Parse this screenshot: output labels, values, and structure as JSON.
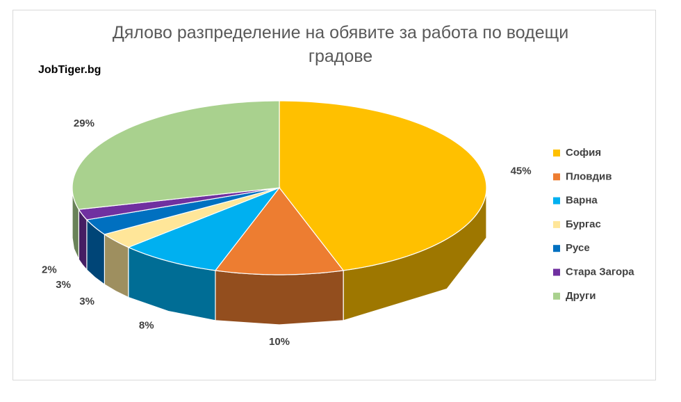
{
  "chart_data": {
    "type": "pie",
    "title": "Дялово разпределение на обявите за работа по водещи градове",
    "annotation": "JobTiger.bg",
    "categories": [
      "София",
      "Пловдив",
      "Варна",
      "Бургас",
      "Русе",
      "Стара Загора",
      "Други"
    ],
    "values": [
      45,
      10,
      8,
      3,
      3,
      2,
      29
    ],
    "value_labels": [
      "45%",
      "10%",
      "8%",
      "3%",
      "3%",
      "2%",
      "29%"
    ],
    "colors": [
      "#FFC000",
      "#ED7D31",
      "#00B0F0",
      "#FFE699",
      "#0070C0",
      "#7030A0",
      "#A9D18E"
    ],
    "legend": "right"
  }
}
